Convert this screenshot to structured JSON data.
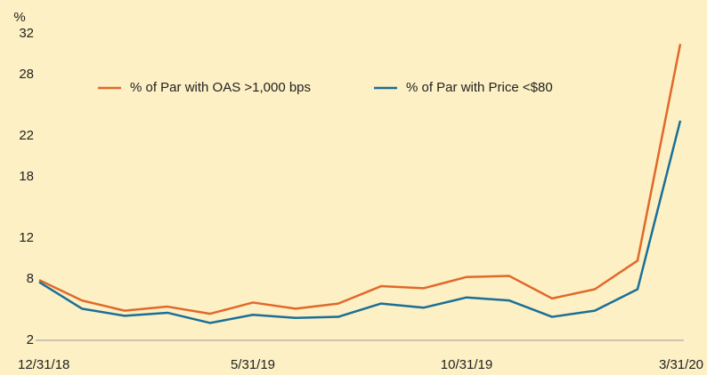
{
  "chart_data": {
    "type": "line",
    "y_unit": "%",
    "categories": [
      "12/31/18",
      null,
      null,
      null,
      null,
      "5/31/19",
      null,
      null,
      null,
      null,
      "10/31/19",
      null,
      null,
      null,
      null,
      "3/31/20"
    ],
    "series": [
      {
        "name": "% of Par with OAS >1,000 bps",
        "color": "#e0692a",
        "values": [
          7.9,
          5.9,
          4.9,
          5.3,
          4.6,
          5.7,
          5.1,
          5.6,
          7.3,
          7.1,
          8.2,
          8.3,
          6.1,
          7.0,
          9.8,
          31.0
        ]
      },
      {
        "name": "% of Par with Price <$80",
        "color": "#1a6f97",
        "values": [
          7.7,
          5.1,
          4.4,
          4.7,
          3.7,
          4.5,
          4.2,
          4.3,
          5.6,
          5.2,
          6.2,
          5.9,
          4.3,
          4.9,
          7.0,
          23.5
        ]
      }
    ],
    "ylim": [
      2,
      32
    ],
    "yticks": [
      2,
      8,
      12,
      18,
      22,
      28,
      32
    ],
    "grid": false,
    "legend": "top"
  }
}
